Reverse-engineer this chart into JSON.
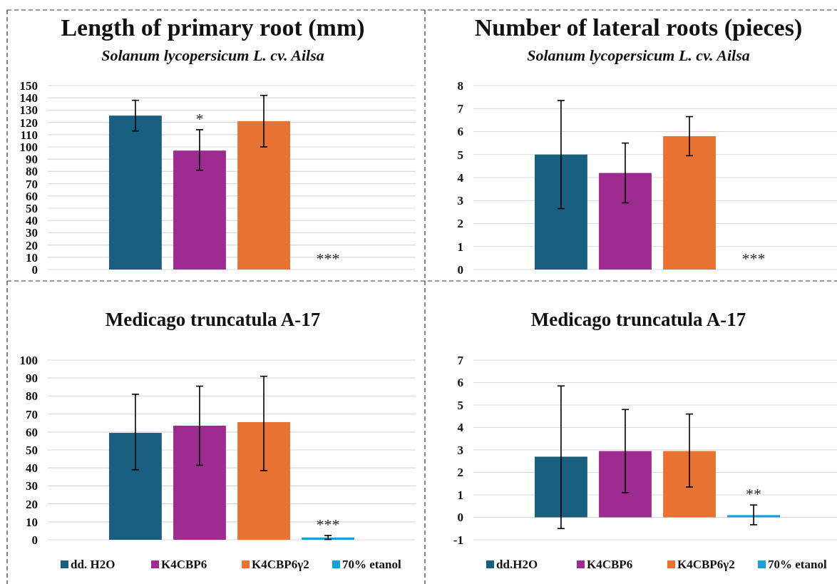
{
  "chart_data": [
    {
      "type": "bar",
      "title": "Length of primary root (mm)",
      "subtitle": "Solanum lycopersicum L. cv. Ailsa",
      "categories": [
        null
      ],
      "series": [
        {
          "color": "#185f80",
          "values": [
            125.5
          ],
          "errors": [
            [
              113,
              138
            ]
          ]
        },
        {
          "color": "#9e2b90",
          "values": [
            97
          ],
          "errors": [
            [
              81,
              114
            ]
          ]
        },
        {
          "color": "#e87232",
          "values": [
            121
          ],
          "errors": [
            [
              100,
              142
            ]
          ]
        },
        {
          "color": "#1a9fd6",
          "values": [
            0
          ]
        }
      ],
      "ylim": [
        0,
        150
      ],
      "yticks": [
        0,
        10,
        20,
        30,
        40,
        50,
        60,
        70,
        80,
        90,
        100,
        110,
        120,
        130,
        140,
        150
      ],
      "grid": "y",
      "legend": false,
      "annotations": [
        "*",
        "***"
      ]
    },
    {
      "type": "bar",
      "title": "Number of lateral roots (pieces)",
      "subtitle": "Solanum lycopersicum L. cv. Ailsa",
      "categories": [
        null
      ],
      "series": [
        {
          "color": "#185f80",
          "values": [
            5.0
          ],
          "errors": [
            [
              2.65,
              7.35
            ]
          ]
        },
        {
          "color": "#9e2b90",
          "values": [
            4.2
          ],
          "errors": [
            [
              2.9,
              5.5
            ]
          ]
        },
        {
          "color": "#e87232",
          "values": [
            5.8
          ],
          "errors": [
            [
              4.95,
              6.65
            ]
          ]
        },
        {
          "color": "#1a9fd6",
          "values": [
            0
          ]
        }
      ],
      "ylim": [
        0,
        8
      ],
      "yticks": [
        0,
        1,
        2,
        3,
        4,
        5,
        6,
        7,
        8
      ],
      "grid": "y",
      "legend": false,
      "annotations": [
        "***"
      ]
    },
    {
      "type": "bar",
      "title": "Medicago truncatula A-17",
      "categories": [
        null
      ],
      "series": [
        {
          "name": "dd. H2O",
          "color": "#185f80",
          "values": [
            59.5
          ],
          "errors": [
            [
              39,
              81
            ]
          ]
        },
        {
          "name": "K4CBP6",
          "color": "#9e2b90",
          "values": [
            63.5
          ],
          "errors": [
            [
              41.5,
              85.5
            ]
          ]
        },
        {
          "name": "K4CBP6γ2",
          "color": "#e87232",
          "values": [
            65.5
          ],
          "errors": [
            [
              38.5,
              91
            ]
          ]
        },
        {
          "name": "70% etanol",
          "color": "#1a9fd6",
          "values": [
            1.3
          ],
          "errors": [
            [
              0.2,
              2.4
            ]
          ]
        }
      ],
      "ylim": [
        0,
        100
      ],
      "yticks": [
        0,
        10,
        20,
        30,
        40,
        50,
        60,
        70,
        80,
        90,
        100
      ],
      "grid": "y",
      "legend": "bottom",
      "annotations": [
        "***"
      ]
    },
    {
      "type": "bar",
      "title": "Medicago truncatula A-17",
      "categories": [
        null
      ],
      "series": [
        {
          "name": "dd.H2O",
          "color": "#185f80",
          "values": [
            2.7
          ],
          "errors": [
            [
              -0.5,
              5.85
            ]
          ]
        },
        {
          "name": "K4CBP6",
          "color": "#9e2b90",
          "values": [
            2.95
          ],
          "errors": [
            [
              1.1,
              4.8
            ]
          ]
        },
        {
          "name": "K4CBP6γ2",
          "color": "#e87232",
          "values": [
            2.95
          ],
          "errors": [
            [
              1.35,
              4.6
            ]
          ]
        },
        {
          "name": "70% etanol",
          "color": "#1a9fd6",
          "values": [
            0.1
          ],
          "errors": [
            [
              -0.33,
              0.55
            ]
          ]
        }
      ],
      "ylim": [
        -1,
        7
      ],
      "yticks": [
        -1,
        0,
        1,
        2,
        3,
        4,
        5,
        6,
        7
      ],
      "grid": "y",
      "legend": "bottom",
      "annotations": [
        "**"
      ]
    }
  ]
}
